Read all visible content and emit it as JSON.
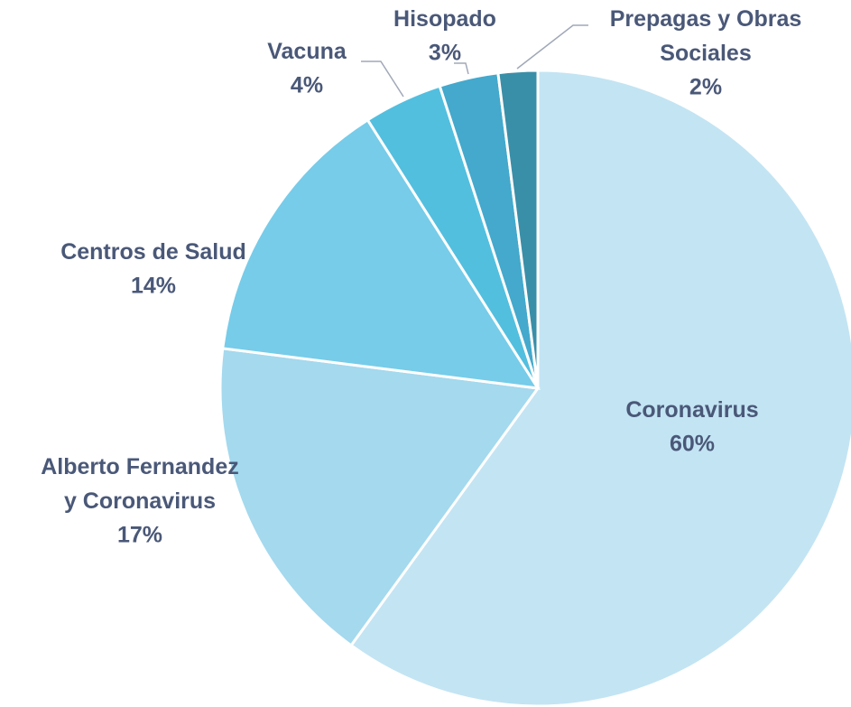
{
  "chart_data": {
    "type": "pie",
    "categories": [
      "Coronavirus",
      "Alberto Fernandez y Coronavirus",
      "Centros de Salud",
      "Vacuna",
      "Hisopado",
      "Prepagas y Obras Sociales"
    ],
    "values": [
      60,
      17,
      14,
      4,
      3,
      2
    ],
    "value_labels": [
      "60%",
      "17%",
      "14%",
      "4%",
      "3%",
      "2%"
    ],
    "colors": [
      "#c3e4f3",
      "#a4d9ee",
      "#76cce9",
      "#52bfdf",
      "#44a9cc",
      "#3a8fa8"
    ]
  }
}
